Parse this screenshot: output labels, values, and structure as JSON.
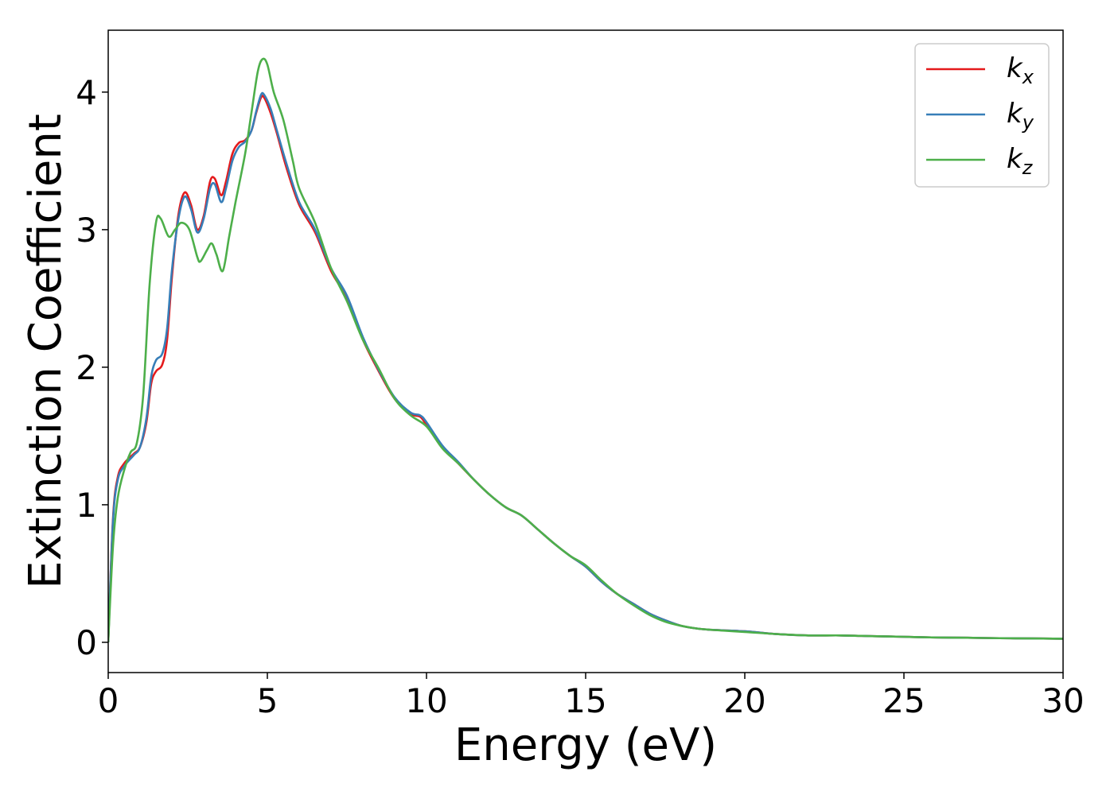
{
  "chart_data": {
    "type": "line",
    "xlabel": "Energy (eV)",
    "ylabel": "Extinction Coefficient",
    "xlim": [
      0,
      30
    ],
    "ylim": [
      -0.22,
      4.45
    ],
    "x_ticks": [
      "0",
      "5",
      "10",
      "15",
      "20",
      "25",
      "30"
    ],
    "y_ticks": [
      "0",
      "1",
      "2",
      "3",
      "4"
    ],
    "grid": false,
    "legend_position": "top-right",
    "series": [
      {
        "name": "k",
        "subscript": "x",
        "color": "#e41a1c",
        "points": [
          [
            0,
            0
          ],
          [
            0.15,
            0.9
          ],
          [
            0.3,
            1.2
          ],
          [
            0.5,
            1.3
          ],
          [
            0.8,
            1.37
          ],
          [
            1.0,
            1.42
          ],
          [
            1.2,
            1.6
          ],
          [
            1.35,
            1.88
          ],
          [
            1.5,
            1.97
          ],
          [
            1.7,
            2.02
          ],
          [
            1.85,
            2.2
          ],
          [
            2.0,
            2.65
          ],
          [
            2.2,
            3.1
          ],
          [
            2.4,
            3.27
          ],
          [
            2.6,
            3.18
          ],
          [
            2.8,
            3.0
          ],
          [
            3.0,
            3.1
          ],
          [
            3.2,
            3.35
          ],
          [
            3.35,
            3.37
          ],
          [
            3.55,
            3.25
          ],
          [
            3.7,
            3.35
          ],
          [
            3.9,
            3.55
          ],
          [
            4.1,
            3.63
          ],
          [
            4.3,
            3.65
          ],
          [
            4.5,
            3.72
          ],
          [
            4.65,
            3.85
          ],
          [
            4.8,
            3.96
          ],
          [
            4.9,
            3.96
          ],
          [
            5.1,
            3.85
          ],
          [
            5.3,
            3.7
          ],
          [
            5.6,
            3.45
          ],
          [
            6.0,
            3.18
          ],
          [
            6.5,
            2.98
          ],
          [
            7.0,
            2.7
          ],
          [
            7.5,
            2.5
          ],
          [
            8.0,
            2.2
          ],
          [
            8.5,
            1.97
          ],
          [
            9.0,
            1.77
          ],
          [
            9.5,
            1.66
          ],
          [
            9.8,
            1.64
          ],
          [
            10.0,
            1.58
          ],
          [
            10.5,
            1.42
          ],
          [
            11.0,
            1.3
          ],
          [
            11.5,
            1.18
          ],
          [
            12.0,
            1.07
          ],
          [
            12.5,
            0.98
          ],
          [
            13.0,
            0.92
          ],
          [
            13.5,
            0.82
          ],
          [
            14.0,
            0.72
          ],
          [
            14.5,
            0.63
          ],
          [
            15.0,
            0.55
          ],
          [
            15.5,
            0.44
          ],
          [
            16.0,
            0.35
          ],
          [
            16.5,
            0.28
          ],
          [
            17.0,
            0.21
          ],
          [
            17.5,
            0.16
          ],
          [
            18.0,
            0.12
          ],
          [
            18.5,
            0.1
          ],
          [
            19.0,
            0.09
          ],
          [
            20.0,
            0.08
          ],
          [
            21.0,
            0.06
          ],
          [
            22.0,
            0.05
          ],
          [
            23.0,
            0.05
          ],
          [
            24.0,
            0.045
          ],
          [
            25.0,
            0.04
          ],
          [
            26.0,
            0.035
          ],
          [
            27.0,
            0.033
          ],
          [
            28.0,
            0.03
          ],
          [
            29.0,
            0.028
          ],
          [
            30.0,
            0.026
          ]
        ]
      },
      {
        "name": "k",
        "subscript": "y",
        "color": "#377eb8",
        "points": [
          [
            0,
            0
          ],
          [
            0.15,
            0.88
          ],
          [
            0.3,
            1.18
          ],
          [
            0.5,
            1.28
          ],
          [
            0.8,
            1.36
          ],
          [
            1.0,
            1.42
          ],
          [
            1.2,
            1.63
          ],
          [
            1.35,
            1.93
          ],
          [
            1.5,
            2.05
          ],
          [
            1.7,
            2.1
          ],
          [
            1.85,
            2.28
          ],
          [
            2.0,
            2.7
          ],
          [
            2.2,
            3.07
          ],
          [
            2.4,
            3.24
          ],
          [
            2.6,
            3.15
          ],
          [
            2.8,
            2.98
          ],
          [
            3.0,
            3.08
          ],
          [
            3.2,
            3.3
          ],
          [
            3.35,
            3.33
          ],
          [
            3.55,
            3.2
          ],
          [
            3.7,
            3.3
          ],
          [
            3.9,
            3.5
          ],
          [
            4.1,
            3.6
          ],
          [
            4.3,
            3.64
          ],
          [
            4.5,
            3.72
          ],
          [
            4.65,
            3.86
          ],
          [
            4.8,
            3.98
          ],
          [
            4.9,
            3.98
          ],
          [
            5.1,
            3.88
          ],
          [
            5.3,
            3.72
          ],
          [
            5.6,
            3.48
          ],
          [
            6.0,
            3.2
          ],
          [
            6.5,
            3.0
          ],
          [
            7.0,
            2.72
          ],
          [
            7.5,
            2.52
          ],
          [
            8.0,
            2.22
          ],
          [
            8.5,
            1.98
          ],
          [
            9.0,
            1.78
          ],
          [
            9.5,
            1.67
          ],
          [
            9.8,
            1.65
          ],
          [
            10.0,
            1.6
          ],
          [
            10.5,
            1.43
          ],
          [
            11.0,
            1.31
          ],
          [
            11.5,
            1.18
          ],
          [
            12.0,
            1.07
          ],
          [
            12.5,
            0.98
          ],
          [
            13.0,
            0.92
          ],
          [
            13.5,
            0.82
          ],
          [
            14.0,
            0.72
          ],
          [
            14.5,
            0.63
          ],
          [
            15.0,
            0.55
          ],
          [
            15.5,
            0.44
          ],
          [
            16.0,
            0.35
          ],
          [
            16.5,
            0.28
          ],
          [
            17.0,
            0.21
          ],
          [
            17.5,
            0.16
          ],
          [
            18.0,
            0.12
          ],
          [
            18.5,
            0.1
          ],
          [
            19.0,
            0.09
          ],
          [
            20.0,
            0.08
          ],
          [
            21.0,
            0.06
          ],
          [
            22.0,
            0.05
          ],
          [
            23.0,
            0.05
          ],
          [
            24.0,
            0.045
          ],
          [
            25.0,
            0.04
          ],
          [
            26.0,
            0.035
          ],
          [
            27.0,
            0.033
          ],
          [
            28.0,
            0.03
          ],
          [
            29.0,
            0.028
          ],
          [
            30.0,
            0.026
          ]
        ]
      },
      {
        "name": "k",
        "subscript": "z",
        "color": "#4daf4a",
        "points": [
          [
            0,
            0
          ],
          [
            0.15,
            0.7
          ],
          [
            0.3,
            1.05
          ],
          [
            0.5,
            1.25
          ],
          [
            0.7,
            1.38
          ],
          [
            0.9,
            1.45
          ],
          [
            1.1,
            1.8
          ],
          [
            1.3,
            2.6
          ],
          [
            1.5,
            3.05
          ],
          [
            1.65,
            3.08
          ],
          [
            1.9,
            2.95
          ],
          [
            2.1,
            3.0
          ],
          [
            2.3,
            3.05
          ],
          [
            2.55,
            3.0
          ],
          [
            2.8,
            2.8
          ],
          [
            2.9,
            2.77
          ],
          [
            3.1,
            2.85
          ],
          [
            3.25,
            2.9
          ],
          [
            3.4,
            2.82
          ],
          [
            3.6,
            2.7
          ],
          [
            3.8,
            2.95
          ],
          [
            4.0,
            3.2
          ],
          [
            4.3,
            3.55
          ],
          [
            4.5,
            3.85
          ],
          [
            4.7,
            4.15
          ],
          [
            4.85,
            4.24
          ],
          [
            5.0,
            4.2
          ],
          [
            5.2,
            4.0
          ],
          [
            5.5,
            3.8
          ],
          [
            5.8,
            3.5
          ],
          [
            6.0,
            3.3
          ],
          [
            6.5,
            3.05
          ],
          [
            7.0,
            2.72
          ],
          [
            7.5,
            2.48
          ],
          [
            8.0,
            2.2
          ],
          [
            8.5,
            1.99
          ],
          [
            9.0,
            1.77
          ],
          [
            9.5,
            1.65
          ],
          [
            10.0,
            1.57
          ],
          [
            10.5,
            1.41
          ],
          [
            11.0,
            1.3
          ],
          [
            11.5,
            1.18
          ],
          [
            12.0,
            1.07
          ],
          [
            12.5,
            0.98
          ],
          [
            13.0,
            0.92
          ],
          [
            13.5,
            0.82
          ],
          [
            14.0,
            0.72
          ],
          [
            14.5,
            0.63
          ],
          [
            15.0,
            0.56
          ],
          [
            15.5,
            0.45
          ],
          [
            16.0,
            0.35
          ],
          [
            16.5,
            0.27
          ],
          [
            17.0,
            0.2
          ],
          [
            17.5,
            0.15
          ],
          [
            18.0,
            0.12
          ],
          [
            18.5,
            0.1
          ],
          [
            19.0,
            0.09
          ],
          [
            20.0,
            0.075
          ],
          [
            21.0,
            0.06
          ],
          [
            22.0,
            0.05
          ],
          [
            23.0,
            0.05
          ],
          [
            24.0,
            0.045
          ],
          [
            25.0,
            0.04
          ],
          [
            26.0,
            0.035
          ],
          [
            27.0,
            0.033
          ],
          [
            28.0,
            0.03
          ],
          [
            29.0,
            0.028
          ],
          [
            30.0,
            0.026
          ]
        ]
      }
    ]
  }
}
